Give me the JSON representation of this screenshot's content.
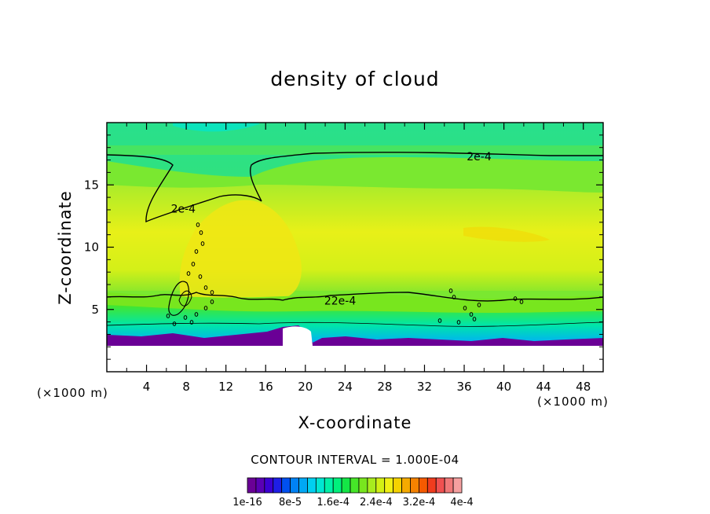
{
  "chart_data": {
    "type": "heatmap",
    "title": "density of cloud",
    "xlabel": "X-coordinate",
    "ylabel": "Z-coordinate",
    "x_unit": "(×1000 m)",
    "y_unit": "(×1000 m)",
    "xlim": [
      0,
      50
    ],
    "ylim": [
      0,
      20
    ],
    "x_ticks": [
      "4",
      "8",
      "12",
      "16",
      "20",
      "24",
      "28",
      "32",
      "36",
      "40",
      "44",
      "48"
    ],
    "x_tick_values": [
      4,
      8,
      12,
      16,
      20,
      24,
      28,
      32,
      36,
      40,
      44,
      48
    ],
    "y_ticks": [
      "5",
      "10",
      "15"
    ],
    "y_tick_values": [
      5,
      10,
      15
    ],
    "contour_interval_text": "CONTOUR INTERVAL = 1.000E-04",
    "contour_labels": [
      {
        "text": "2e-4",
        "x": 37.5,
        "z": 17.3
      },
      {
        "text": "2e-4",
        "x": 7.7,
        "z": 13.1
      },
      {
        "text": "22e-4",
        "x": 23.5,
        "z": 5.7
      }
    ],
    "colorbar": {
      "labels": [
        "1e-16",
        "8e-5",
        "1.6e-4",
        "2.4e-4",
        "3.2e-4",
        "4e-4"
      ],
      "colors": [
        "#6a0096",
        "#5a00b4",
        "#3c00d2",
        "#1e1ee6",
        "#0050f0",
        "#0082f5",
        "#00a8f5",
        "#00cff0",
        "#00e6d2",
        "#00f0a8",
        "#00f07c",
        "#14e646",
        "#46e628",
        "#78e61e",
        "#a8ec1e",
        "#d2f014",
        "#f0f014",
        "#f5d200",
        "#f5aa00",
        "#f58200",
        "#f55a00",
        "#f03c1e",
        "#f05050",
        "#f07878",
        "#f5a0a0"
      ]
    }
  }
}
